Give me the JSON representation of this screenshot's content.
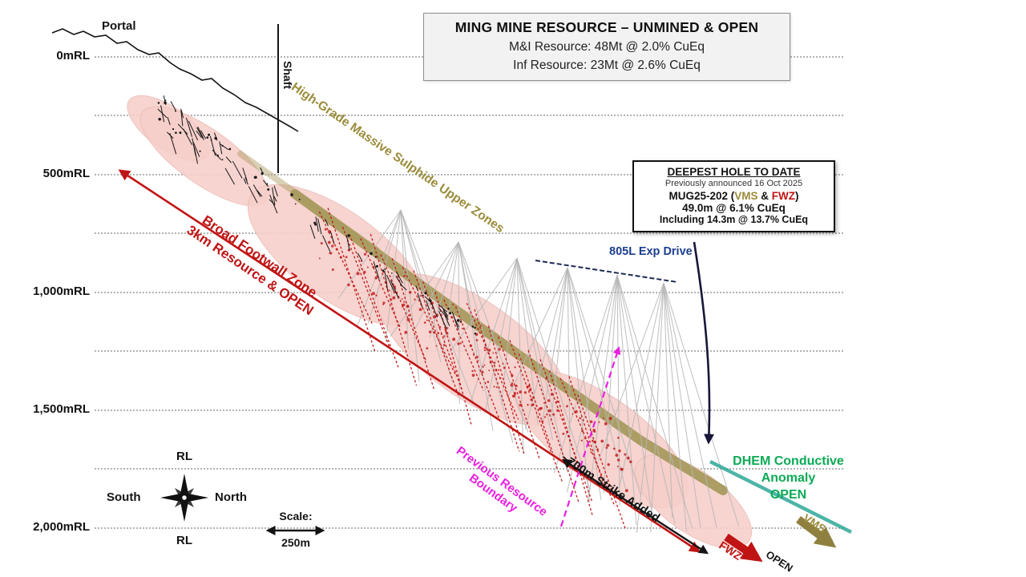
{
  "title_box": {
    "line1": "MING MINE RESOURCE – UNMINED & OPEN",
    "line2": "M&I Resource: 48Mt @ 2.0% CuEq",
    "line3": "Inf Resource: 23Mt @ 2.6% CuEq"
  },
  "axis": {
    "labels": [
      "0mRL",
      "500mRL",
      "1,000mRL",
      "1,500mRL",
      "2,000mRL"
    ]
  },
  "deepest_hole": {
    "title": "DEEPEST HOLE TO DATE",
    "subtitle": "Previously announced 16 Oct 2025",
    "hole_prefix": "MUG25-202 (",
    "hole_vms": "VMS",
    "hole_amp": " & ",
    "hole_fwz": "FWZ",
    "hole_suffix": ")",
    "intercept": "49.0m @ 6.1% CuEq",
    "including": "Including 14.3m @ 13.7% CuEq"
  },
  "annotations": {
    "portal": "Portal",
    "shaft": "Shaft",
    "upper_zone": "High-Grade Massive Sulphide Upper Zones",
    "footwall_line1": "Broad Footwall Zone",
    "footwall_line2": "3km Resource & OPEN",
    "exp_drive": "805L Exp Drive",
    "dhem_line1": "DHEM Conductive",
    "dhem_line2": "Anomaly",
    "dhem_line3": "OPEN",
    "vms": "VMS",
    "fwz": "FWZ",
    "open": "OPEN",
    "prev_boundary_line1": "Previous Resource",
    "prev_boundary_line2": "Boundary",
    "strike_added": "~700m Strike Added"
  },
  "compass": {
    "top": "RL",
    "bottom": "RL",
    "left": "South",
    "right": "North"
  },
  "scale": {
    "label": "Scale:",
    "value": "250m"
  },
  "colors": {
    "red": "#c01414",
    "olive": "#9b8b3a",
    "oliveband": "#a89a5e",
    "magenta": "#ea1fe0",
    "green": "#0caa55",
    "teal": "#2fa89a",
    "navy": "#1c3e8f",
    "ink": "#141414"
  }
}
